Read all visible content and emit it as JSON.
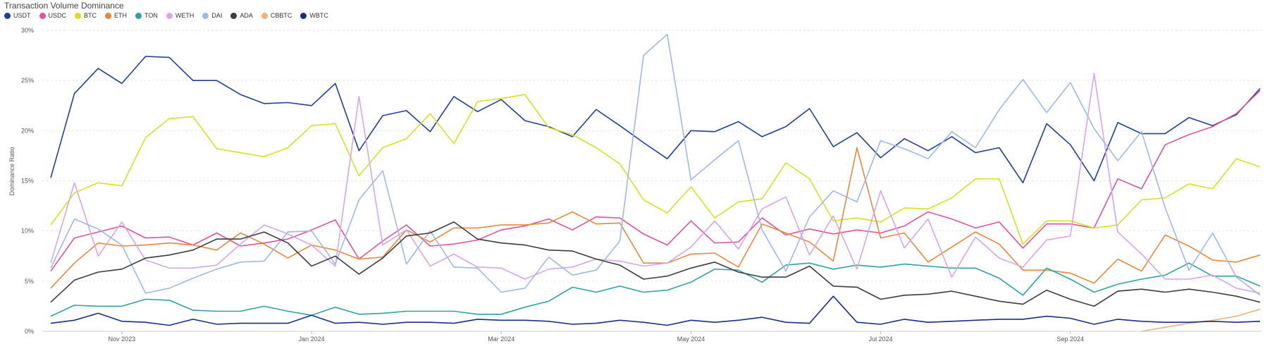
{
  "chart_data": {
    "type": "line",
    "title": "Transaction Volume Dominance",
    "ylabel": "Dominance Ratio",
    "xlabel": "",
    "ylim": [
      0,
      30
    ],
    "y_ticks": [
      "0%",
      "5%",
      "10%",
      "15%",
      "20%",
      "25%",
      "30%"
    ],
    "y_tick_values": [
      0,
      5,
      10,
      15,
      20,
      25,
      30
    ],
    "x_ticks": [
      "Nov 2023",
      "Jan 2024",
      "Mar 2024",
      "May 2024",
      "Jul 2024",
      "Sep 2024"
    ],
    "x_tick_positions": [
      3,
      11,
      19,
      27,
      35,
      43
    ],
    "grid": "horizontal-dashed",
    "legend_position": "top-left",
    "series": [
      {
        "name": "USDT",
        "color": "#1f3f99",
        "values": [
          15.3,
          23.7,
          26.2,
          24.7,
          27.4,
          27.3,
          25.0,
          25.0,
          23.6,
          22.7,
          22.8,
          22.5,
          24.7,
          18.0,
          21.5,
          22.0,
          19.9,
          23.4,
          21.9,
          23.1,
          21.0,
          20.4,
          19.4,
          22.1,
          20.5,
          18.8,
          17.2,
          20.0,
          19.9,
          20.9,
          19.4,
          20.4,
          22.2,
          18.4,
          19.8,
          17.3,
          19.2,
          18.0,
          19.4,
          17.8,
          18.3,
          14.8,
          20.7,
          18.6,
          15.0,
          20.8,
          19.7,
          19.7,
          21.3,
          20.5,
          21.6,
          24.2
        ]
      },
      {
        "name": "USDC",
        "color": "#e0529c",
        "values": [
          6.0,
          9.3,
          9.9,
          10.5,
          9.3,
          9.4,
          8.6,
          9.8,
          8.5,
          8.8,
          9.2,
          10.1,
          11.1,
          7.2,
          9.0,
          10.6,
          8.5,
          8.7,
          9.1,
          10.1,
          10.5,
          11.2,
          10.1,
          11.4,
          11.3,
          9.7,
          8.6,
          11.0,
          8.8,
          8.9,
          11.3,
          9.6,
          10.2,
          9.7,
          10.1,
          9.8,
          10.5,
          11.9,
          11.2,
          10.3,
          10.9,
          8.3,
          10.7,
          10.7,
          10.3,
          15.2,
          14.2,
          18.6,
          19.6,
          20.4,
          21.7,
          24.0
        ]
      },
      {
        "name": "BTC",
        "color": "#d9e021",
        "values": [
          10.6,
          13.8,
          14.8,
          14.5,
          19.3,
          21.2,
          21.4,
          18.2,
          17.8,
          17.4,
          18.3,
          20.5,
          20.7,
          15.5,
          18.3,
          19.2,
          21.7,
          18.7,
          22.9,
          23.2,
          23.6,
          20.3,
          19.6,
          18.3,
          16.7,
          13.1,
          11.8,
          14.4,
          11.3,
          12.9,
          13.2,
          16.8,
          15.2,
          11.0,
          11.3,
          10.9,
          12.3,
          12.2,
          13.3,
          15.2,
          15.2,
          8.7,
          11.0,
          11.0,
          10.3,
          10.6,
          13.1,
          13.3,
          14.7,
          14.2,
          17.2,
          16.4
        ]
      },
      {
        "name": "ETH",
        "color": "#e8883c",
        "values": [
          4.3,
          6.8,
          8.8,
          8.5,
          8.6,
          8.8,
          8.6,
          8.1,
          9.8,
          8.7,
          7.3,
          8.6,
          8.1,
          7.2,
          7.4,
          10.1,
          8.9,
          10.3,
          10.3,
          10.6,
          10.6,
          10.8,
          11.9,
          10.7,
          10.8,
          6.8,
          6.8,
          7.7,
          7.8,
          6.4,
          10.7,
          9.8,
          8.9,
          7.0,
          18.3,
          9.3,
          9.8,
          6.9,
          8.4,
          9.9,
          8.7,
          6.1,
          6.1,
          5.8,
          4.8,
          7.2,
          6.0,
          9.6,
          8.5,
          7.1,
          6.9,
          7.6
        ]
      },
      {
        "name": "TON",
        "color": "#2ea3a3",
        "values": [
          1.5,
          2.6,
          2.5,
          2.5,
          3.2,
          3.1,
          2.1,
          2.0,
          2.0,
          2.5,
          2.0,
          1.6,
          2.4,
          1.7,
          1.8,
          2.0,
          2.0,
          2.0,
          1.7,
          1.7,
          2.4,
          3.0,
          4.4,
          3.9,
          4.5,
          3.9,
          4.1,
          4.9,
          6.2,
          6.1,
          4.9,
          6.6,
          6.8,
          6.2,
          6.6,
          6.4,
          6.7,
          6.5,
          6.3,
          6.3,
          5.3,
          3.6,
          6.3,
          5.2,
          3.9,
          4.7,
          5.2,
          5.6,
          6.8,
          5.5,
          5.5,
          4.5
        ]
      },
      {
        "name": "WETH",
        "color": "#d8a4ec",
        "values": [
          6.8,
          14.8,
          7.5,
          10.9,
          7.1,
          6.3,
          6.3,
          6.6,
          8.7,
          10.6,
          9.7,
          8.6,
          6.5,
          23.4,
          8.6,
          10.1,
          6.5,
          7.7,
          6.4,
          6.3,
          5.2,
          6.2,
          6.4,
          7.2,
          7.0,
          6.5,
          6.8,
          8.4,
          11.0,
          8.2,
          12.2,
          13.4,
          7.6,
          11.5,
          6.2,
          14.0,
          8.3,
          11.2,
          5.4,
          9.4,
          7.3,
          6.4,
          9.1,
          9.5,
          25.7,
          9.9,
          7.7,
          5.2,
          5.2,
          5.6,
          4.3,
          3.8
        ]
      },
      {
        "name": "DAI",
        "color": "#9fb8e8",
        "values": [
          6.3,
          11.2,
          10.2,
          8.6,
          3.8,
          4.3,
          5.3,
          6.2,
          6.9,
          7.0,
          9.9,
          10.0,
          6.7,
          13.1,
          16.0,
          6.7,
          10.0,
          6.4,
          6.3,
          3.9,
          4.3,
          7.4,
          5.6,
          6.1,
          9.0,
          27.5,
          29.6,
          15.1,
          17.1,
          19.0,
          10.1,
          6.0,
          11.4,
          14.0,
          12.9,
          19.0,
          18.2,
          17.2,
          19.9,
          18.3,
          22.1,
          25.1,
          21.8,
          24.8,
          20.2,
          17.0,
          19.9,
          12.3,
          6.1,
          9.8,
          5.4,
          3.6
        ]
      },
      {
        "name": "ADA",
        "color": "#3d3d3d",
        "values": [
          2.9,
          5.1,
          5.9,
          6.2,
          7.3,
          7.6,
          8.1,
          9.2,
          9.2,
          9.9,
          8.8,
          6.5,
          7.5,
          5.7,
          7.3,
          9.5,
          9.8,
          10.9,
          9.2,
          8.8,
          8.6,
          8.1,
          8.0,
          7.2,
          6.6,
          5.2,
          5.5,
          6.3,
          6.9,
          5.9,
          5.4,
          5.4,
          6.5,
          4.5,
          4.4,
          3.2,
          3.6,
          3.7,
          4.0,
          3.5,
          3.0,
          2.7,
          4.1,
          3.2,
          2.5,
          4.0,
          4.2,
          3.9,
          4.2,
          3.9,
          3.5,
          2.9
        ]
      },
      {
        "name": "CBBTC",
        "color": "#ebb27e",
        "values": [
          null,
          null,
          null,
          null,
          null,
          null,
          null,
          null,
          null,
          null,
          null,
          null,
          null,
          null,
          null,
          null,
          null,
          null,
          null,
          null,
          null,
          null,
          null,
          null,
          null,
          null,
          null,
          null,
          null,
          null,
          null,
          null,
          null,
          null,
          null,
          null,
          null,
          null,
          null,
          null,
          null,
          null,
          null,
          null,
          null,
          null,
          0.0,
          0.4,
          0.8,
          1.1,
          1.5,
          2.2
        ]
      },
      {
        "name": "WBTC",
        "color": "#1a2d8c",
        "values": [
          0.8,
          1.1,
          1.8,
          1.0,
          0.9,
          0.6,
          1.2,
          0.7,
          0.8,
          0.8,
          0.8,
          1.6,
          0.8,
          0.9,
          0.7,
          0.9,
          0.9,
          0.8,
          1.2,
          1.1,
          1.1,
          1.0,
          0.7,
          0.8,
          1.1,
          0.9,
          0.6,
          1.1,
          0.9,
          1.1,
          1.4,
          0.9,
          0.8,
          3.5,
          0.9,
          0.7,
          1.2,
          0.9,
          1.0,
          1.1,
          1.2,
          1.2,
          1.5,
          1.3,
          0.7,
          1.2,
          1.0,
          0.9,
          0.9,
          1.0,
          0.9,
          1.0
        ]
      }
    ]
  }
}
